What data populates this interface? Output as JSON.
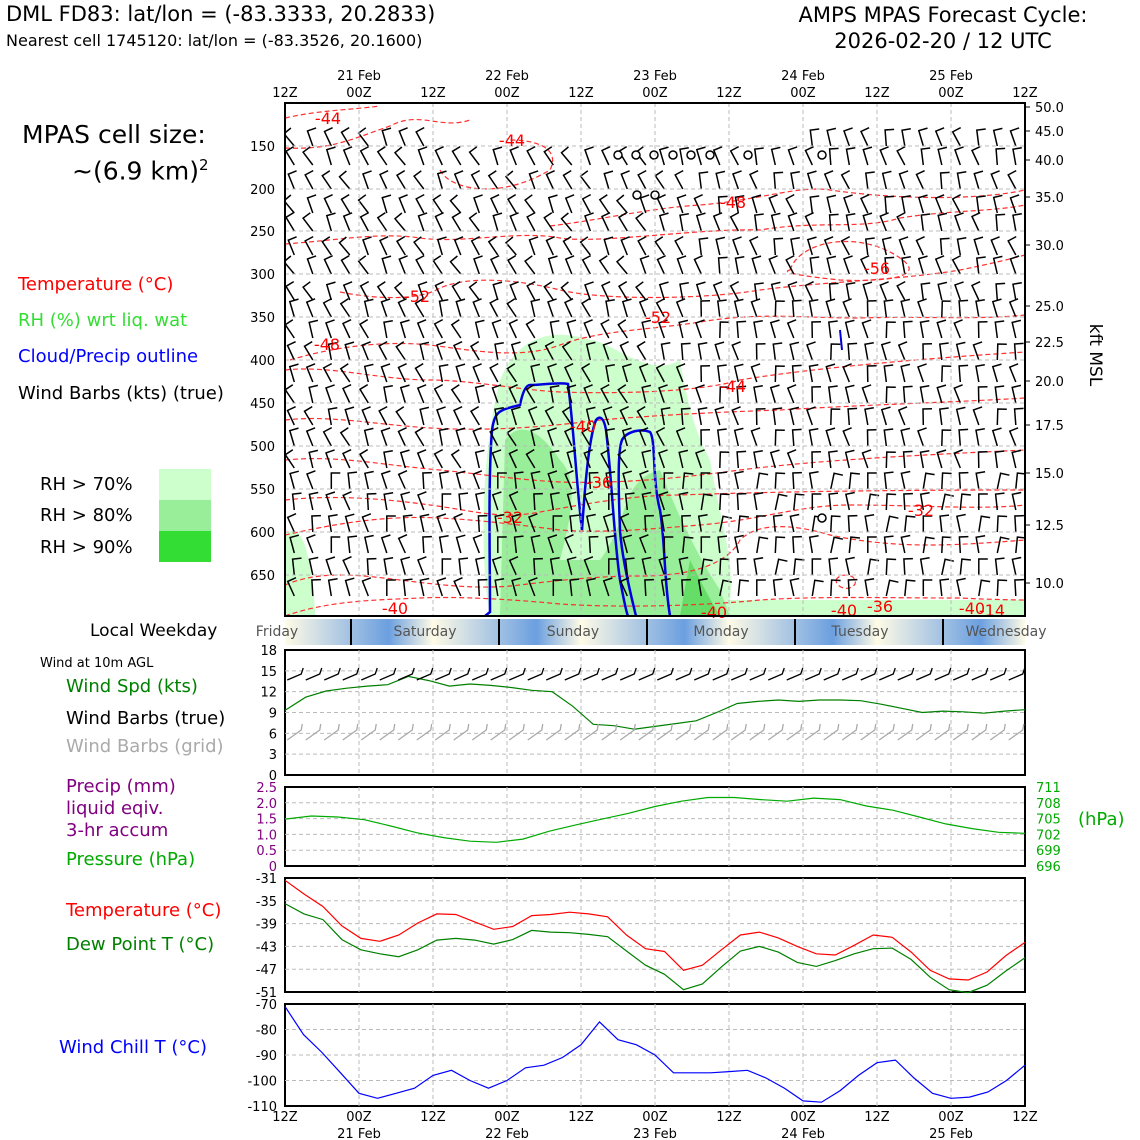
{
  "header": {
    "station": "DML FD83: lat/lon = (-83.3333, 20.2833)",
    "nearest": "Nearest cell 1745120: lat/lon = (-83.3526, 20.1600)",
    "forecast_title": "AMPS MPAS Forecast Cycle:",
    "forecast_cycle": "2026-02-20 / 12 UTC"
  },
  "cell_size": {
    "label": "MPAS cell size:",
    "value": "~(6.9 km)",
    "exp": "2"
  },
  "legend": {
    "temp": "Temperature (°C)",
    "rh": "RH (%) wrt liq. wat",
    "cloud": "Cloud/Precip outline",
    "barbs": "Wind Barbs (kts) (true)",
    "rh70": "RH > 70%",
    "rh80": "RH > 80%",
    "rh90": "RH > 90%",
    "temp_color": "#ff0000",
    "rh_color": "#33dd33",
    "cloud_color": "#0000ff",
    "rh70_color": "#ccffcc",
    "rh80_color": "#99ee99",
    "rh90_color": "#33dd33"
  },
  "weekday": {
    "label": "Local Weekday",
    "days": [
      "Friday",
      "Saturday",
      "Sunday",
      "Monday",
      "Tuesday",
      "Wednesday"
    ]
  },
  "panel_labels": {
    "wind10": "Wind at 10m AGL",
    "wind_spd": "Wind Spd (kts)",
    "wind_barbs_true": "Wind Barbs (true)",
    "wind_barbs_grid": "Wind Barbs (grid)",
    "precip1": "Precip (mm)",
    "precip2": "liquid eqiv.",
    "precip3": "3-hr accum",
    "pressure": "Pressure (hPa)",
    "hpa": "(hPa)",
    "temp": "Temperature (°C)",
    "dew": "Dew Point T (°C)",
    "chill": "Wind Chill T (°C)"
  },
  "time_axis": {
    "ticks": [
      "12Z",
      "00Z",
      "12Z",
      "00Z",
      "12Z",
      "00Z",
      "12Z",
      "00Z",
      "12Z",
      "00Z",
      "12Z"
    ],
    "dates": [
      "21 Feb",
      "22 Feb",
      "23 Feb",
      "24 Feb",
      "25 Feb"
    ]
  },
  "chart_data": [
    {
      "type": "contour",
      "name": "cross-section",
      "ylabel_left": "",
      "ylabel_right": "kft MSL",
      "pressure_ticks": [
        150,
        200,
        250,
        300,
        350,
        400,
        450,
        500,
        550,
        600,
        650
      ],
      "kft_ticks": [
        "50.0",
        "45.0",
        "40.0",
        "35.0",
        "30.0",
        "25.0",
        "22.5",
        "20.0",
        "17.5",
        "15.0",
        "12.5",
        "10.0"
      ],
      "temp_labels": [
        "-44",
        "-44",
        "-48",
        "-56",
        "-52",
        "-52",
        "-48",
        "-44",
        "-40",
        "-36",
        "-32",
        "-32",
        "-40",
        "-40",
        "-40",
        "-36",
        "-40",
        "-14"
      ]
    },
    {
      "type": "line",
      "name": "wind10",
      "ylim": [
        0,
        18
      ],
      "yticks": [
        "0",
        "3",
        "6",
        "9",
        "12",
        "15",
        "18"
      ],
      "speed": [
        9.3,
        11.2,
        12.1,
        12.5,
        12.8,
        13.0,
        14.2,
        13.6,
        12.8,
        13.1,
        12.9,
        12.6,
        12.2,
        12.0,
        9.9,
        7.3,
        7.1,
        6.6,
        7.0,
        7.4,
        7.8,
        9.0,
        10.3,
        10.6,
        10.8,
        10.6,
        10.8,
        10.8,
        10.7,
        10.2,
        9.6,
        9.0,
        9.2,
        9.1,
        8.9,
        9.2,
        9.4
      ],
      "speed_color": "#008000"
    },
    {
      "type": "line",
      "name": "precip-pressure",
      "ylim_left": [
        0,
        2.5
      ],
      "yticks_left": [
        "0",
        "0.5",
        "1.0",
        "1.5",
        "2.0",
        "2.5"
      ],
      "yticks_right": [
        "696",
        "699",
        "702",
        "705",
        "708",
        "711"
      ],
      "pressure": [
        704.9,
        705.5,
        705.3,
        704.8,
        703.6,
        702.3,
        701.4,
        700.7,
        700.5,
        701.1,
        702.6,
        703.8,
        704.9,
        706.0,
        707.3,
        708.3,
        709.0,
        709.0,
        708.6,
        708.3,
        708.9,
        708.6,
        707.4,
        706.6,
        705.3,
        704.0,
        703.1,
        702.4,
        702.2
      ]
    },
    {
      "type": "line",
      "name": "temperature",
      "ylim": [
        -51,
        -31
      ],
      "yticks": [
        "-31",
        "-35",
        "-39",
        "-43",
        "-47",
        "-51"
      ],
      "temp": [
        -31.4,
        -33.8,
        -36.0,
        -39.4,
        -41.6,
        -42.1,
        -41.0,
        -38.9,
        -37.3,
        -37.4,
        -38.7,
        -40.0,
        -39.5,
        -37.6,
        -37.4,
        -37.0,
        -37.3,
        -37.8,
        -41.0,
        -43.4,
        -43.9,
        -47.2,
        -46.3,
        -43.6,
        -41.0,
        -40.5,
        -41.5,
        -43.0,
        -44.3,
        -44.5,
        -42.8,
        -41.0,
        -41.4,
        -44.0,
        -47.2,
        -48.7,
        -48.9,
        -47.5,
        -44.6,
        -42.3
      ],
      "dew": [
        -35.5,
        -37.3,
        -38.3,
        -41.8,
        -43.6,
        -44.3,
        -44.8,
        -43.6,
        -41.9,
        -41.6,
        -41.9,
        -42.6,
        -41.8,
        -40.2,
        -40.5,
        -40.6,
        -40.9,
        -41.3,
        -43.8,
        -46.3,
        -47.9,
        -50.6,
        -49.6,
        -46.6,
        -43.8,
        -43.0,
        -44.0,
        -45.8,
        -46.5,
        -45.5,
        -44.3,
        -43.4,
        -43.3,
        -45.3,
        -48.4,
        -50.6,
        -51.1,
        -49.8,
        -47.3,
        -45.0
      ],
      "temp_color": "#ff0000",
      "dew_color": "#008000"
    },
    {
      "type": "line",
      "name": "wind-chill",
      "ylim": [
        -110,
        -70
      ],
      "yticks": [
        "-70",
        "-80",
        "-90",
        "-100",
        "-110"
      ],
      "chill": [
        -71,
        -82,
        -89,
        -97,
        -105,
        -107,
        -105,
        -103,
        -98,
        -96,
        -100,
        -103,
        -100,
        -95,
        -94,
        -91,
        -86,
        -77,
        -84,
        -86,
        -90,
        -97,
        -97,
        -97,
        -96.5,
        -96,
        -99,
        -103,
        -108,
        -108.5,
        -104,
        -98,
        -93,
        -92,
        -99,
        -105,
        -107,
        -106.5,
        -104.5,
        -100,
        -94
      ],
      "chill_color": "#0000ff"
    }
  ]
}
